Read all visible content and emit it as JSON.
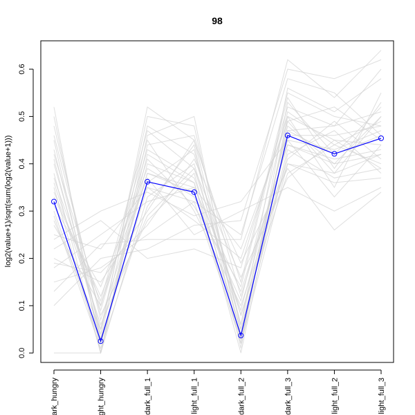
{
  "chart_data": {
    "type": "line",
    "title": "98",
    "xlabel": "",
    "ylabel": "log2(value+1)/sqrt(sum(log2(value+1)))",
    "categories": [
      "dark_hungry",
      "light_hungry",
      "dark_full_1",
      "light_full_1",
      "dark_full_2",
      "dark_full_3",
      "light_full_2",
      "light_full_3"
    ],
    "tick_labels": [
      "ark_hungry",
      "ght_hungry",
      "dark_full_1",
      "light_full_1",
      "dark_full_2",
      "dark_full_3",
      "light_full_2",
      "light_full_3"
    ],
    "ylim": [
      -0.02,
      0.66
    ],
    "yticks": [
      0.0,
      0.1,
      0.2,
      0.3,
      0.4,
      0.5,
      0.6
    ],
    "ytick_labels": [
      "0.0",
      "0.1",
      "0.2",
      "0.3",
      "0.4",
      "0.5",
      "0.6"
    ],
    "highlight_series": {
      "values": [
        0.32,
        0.025,
        0.362,
        0.34,
        0.037,
        0.46,
        0.421,
        0.454
      ],
      "color": "#0000ff"
    },
    "background_series_color": "#d3d3d3",
    "background_series": [
      [
        0.3,
        0.02,
        0.4,
        0.36,
        0.05,
        0.45,
        0.43,
        0.47
      ],
      [
        0.28,
        0.05,
        0.38,
        0.34,
        0.02,
        0.5,
        0.45,
        0.44
      ],
      [
        0.35,
        0.0,
        0.33,
        0.4,
        0.06,
        0.48,
        0.4,
        0.5
      ],
      [
        0.42,
        0.1,
        0.45,
        0.3,
        0.1,
        0.4,
        0.38,
        0.42
      ],
      [
        0.2,
        0.15,
        0.3,
        0.45,
        0.15,
        0.55,
        0.5,
        0.48
      ],
      [
        0.46,
        0.08,
        0.28,
        0.38,
        0.03,
        0.42,
        0.47,
        0.38
      ],
      [
        0.25,
        0.22,
        0.35,
        0.28,
        0.2,
        0.5,
        0.35,
        0.55
      ],
      [
        0.5,
        0.03,
        0.48,
        0.42,
        0.08,
        0.38,
        0.44,
        0.4
      ],
      [
        0.15,
        0.18,
        0.25,
        0.32,
        0.25,
        0.58,
        0.55,
        0.46
      ],
      [
        0.38,
        0.0,
        0.42,
        0.36,
        0.0,
        0.47,
        0.42,
        0.52
      ],
      [
        0.0,
        0.0,
        0.44,
        0.46,
        0.12,
        0.44,
        0.41,
        0.43
      ],
      [
        0.33,
        0.12,
        0.37,
        0.25,
        0.3,
        0.35,
        0.3,
        0.35
      ],
      [
        0.22,
        0.28,
        0.2,
        0.22,
        0.18,
        0.52,
        0.48,
        0.6
      ],
      [
        0.4,
        0.05,
        0.5,
        0.48,
        0.05,
        0.43,
        0.37,
        0.39
      ],
      [
        0.18,
        0.25,
        0.32,
        0.35,
        0.22,
        0.49,
        0.52,
        0.45
      ],
      [
        0.45,
        0.02,
        0.36,
        0.43,
        0.04,
        0.46,
        0.46,
        0.48
      ],
      [
        0.27,
        0.1,
        0.41,
        0.31,
        0.14,
        0.54,
        0.39,
        0.53
      ],
      [
        0.36,
        0.06,
        0.29,
        0.39,
        0.08,
        0.41,
        0.49,
        0.41
      ],
      [
        0.1,
        0.2,
        0.22,
        0.27,
        0.28,
        0.6,
        0.58,
        0.62
      ],
      [
        0.52,
        0.0,
        0.46,
        0.5,
        0.02,
        0.4,
        0.36,
        0.37
      ],
      [
        0.31,
        0.14,
        0.39,
        0.33,
        0.11,
        0.51,
        0.44,
        0.49
      ],
      [
        0.24,
        0.3,
        0.34,
        0.29,
        0.32,
        0.45,
        0.33,
        0.44
      ],
      [
        0.43,
        0.04,
        0.52,
        0.45,
        0.06,
        0.56,
        0.51,
        0.58
      ],
      [
        0.19,
        0.17,
        0.27,
        0.41,
        0.19,
        0.39,
        0.26,
        0.34
      ],
      [
        0.37,
        0.09,
        0.43,
        0.37,
        0.09,
        0.47,
        0.48,
        0.51
      ],
      [
        0.29,
        0.01,
        0.31,
        0.44,
        0.01,
        0.53,
        0.42,
        0.46
      ],
      [
        0.48,
        0.07,
        0.38,
        0.35,
        0.13,
        0.44,
        0.4,
        0.42
      ],
      [
        0.13,
        0.23,
        0.24,
        0.24,
        0.24,
        0.62,
        0.54,
        0.64
      ],
      [
        0.34,
        0.11,
        0.47,
        0.39,
        0.16,
        0.37,
        0.45,
        0.39
      ],
      [
        0.41,
        0.03,
        0.35,
        0.32,
        0.03,
        0.49,
        0.38,
        0.5
      ]
    ]
  }
}
